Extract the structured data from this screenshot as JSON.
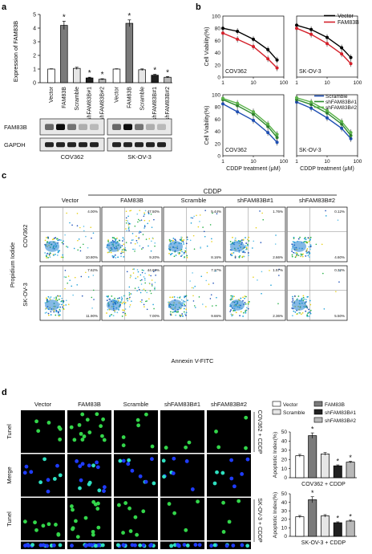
{
  "panel_labels": {
    "a": "a",
    "b": "b",
    "c": "c",
    "d": "d"
  },
  "panel_a": {
    "ylabel": "Expression of FAM83B",
    "yticks": [
      "0",
      "1",
      "2",
      "3",
      "4",
      "5"
    ],
    "cell_lines": [
      "COV362",
      "SK-OV-3"
    ],
    "blot_labels": [
      "FAM83B",
      "GAPDH"
    ]
  },
  "panel_b": {
    "ylabel": "Cell Viability(%)",
    "xlabel": "CDDP treatment (μM)",
    "yticks": [
      "0",
      "20",
      "40",
      "60",
      "80",
      "100"
    ],
    "xticks": [
      "1",
      "10",
      "100"
    ],
    "legend_top": [
      "Vector",
      "FAM83B"
    ],
    "legend_bottom": [
      "Scramble",
      "shFAM83B#1",
      "shFAM83B#2"
    ],
    "subplot_labels": [
      "COV362",
      "SK-OV-3",
      "COV362",
      "SK-OV-3"
    ]
  },
  "panel_c": {
    "header": "CDDP",
    "groups": [
      "Vector",
      "FAM83B",
      "Scramble",
      "shFAM83B#1",
      "shFAM83B#2"
    ],
    "rows": [
      "COV362",
      "SK-OV-3"
    ],
    "ylabel": "Propidium Iodide",
    "xlabel": "Annexin V-FITC",
    "ur_pct": [
      [
        "4.00%",
        "47.50%",
        "5.44%",
        "1.76%",
        "0.12%"
      ],
      [
        "7.62%",
        "44.60%",
        "7.27%",
        "1.57%",
        "0.32%"
      ]
    ],
    "lr_pct": [
      [
        "10.80%",
        "9.20%",
        "8.16%",
        "2.66%",
        "4.60%"
      ],
      [
        "11.90%",
        "7.00%",
        "9.66%",
        "2.36%",
        "5.50%"
      ]
    ]
  },
  "panel_d": {
    "groups": [
      "Vector",
      "FAM83B",
      "Scramble",
      "shFAM83B#1",
      "shFAM83B#2"
    ],
    "row_labels": [
      "Tunel",
      "Merge",
      "Tunel",
      "Merge"
    ],
    "side_labels": [
      "COV362 + CDDP",
      "SK-OV-3 + CDDP"
    ],
    "legend": [
      "Vector",
      "FAM83B",
      "Scramble",
      "shFAM83B#1",
      "shFAM83B#2"
    ],
    "ylabel": "Apoptotic Index(%)",
    "yticks": [
      "0",
      "10",
      "20",
      "30",
      "40",
      "50"
    ],
    "xlabels": [
      "COV362 + CDDP",
      "SK-OV-3 + CDDP"
    ]
  },
  "significance_mark": "*",
  "colors": {
    "vector": "#000000",
    "fam83b": "#d4202a",
    "scramble": "#1f4fb3",
    "sh1": "#2e8b2e",
    "sh2": "#5bb24a"
  },
  "chart_data": [
    {
      "type": "bar",
      "title": "",
      "ylabel": "Expression of FAM83B",
      "ylim": [
        0,
        5
      ],
      "categories": [
        "Vector",
        "FAM83B",
        "Scramble",
        "shFAM83B#1",
        "shFAM83B#2",
        "Vector",
        "FAM83B",
        "Scramble",
        "shFAM83B#1",
        "shFAM83B#2"
      ],
      "values": [
        1.0,
        4.2,
        1.05,
        0.35,
        0.25,
        1.0,
        4.35,
        0.95,
        0.55,
        0.4
      ],
      "errors": [
        0.02,
        0.3,
        0.08,
        0.05,
        0.04,
        0.02,
        0.25,
        0.06,
        0.06,
        0.05
      ],
      "significant": [
        false,
        true,
        false,
        true,
        true,
        false,
        true,
        false,
        true,
        true
      ],
      "groups": [
        "COV362",
        "SK-OV-3"
      ]
    },
    {
      "type": "line",
      "xscale": "log",
      "xlim": [
        1,
        100
      ],
      "ylim": [
        0,
        100
      ],
      "x": [
        1,
        3,
        10,
        30,
        60
      ],
      "series": [
        {
          "name": "Vector",
          "values": [
            80,
            75,
            62,
            45,
            28
          ]
        },
        {
          "name": "FAM83B",
          "values": [
            72,
            62,
            50,
            30,
            15
          ]
        }
      ],
      "label": "COV362"
    },
    {
      "type": "line",
      "xscale": "log",
      "xlim": [
        1,
        100
      ],
      "ylim": [
        0,
        100
      ],
      "x": [
        1,
        3,
        10,
        30,
        60
      ],
      "series": [
        {
          "name": "Vector",
          "values": [
            85,
            78,
            65,
            48,
            32
          ]
        },
        {
          "name": "FAM83B",
          "values": [
            80,
            70,
            55,
            38,
            22
          ]
        }
      ],
      "label": "SK-OV-3"
    },
    {
      "type": "line",
      "xscale": "log",
      "xlim": [
        1,
        100
      ],
      "ylim": [
        0,
        100
      ],
      "x": [
        1,
        3,
        10,
        30,
        60
      ],
      "series": [
        {
          "name": "Scramble",
          "values": [
            85,
            72,
            58,
            38,
            22
          ]
        },
        {
          "name": "shFAM83B#1",
          "values": [
            92,
            82,
            68,
            48,
            30
          ]
        },
        {
          "name": "shFAM83B#2",
          "values": [
            94,
            86,
            72,
            52,
            35
          ]
        }
      ],
      "label": "COV362"
    },
    {
      "type": "line",
      "xscale": "log",
      "xlim": [
        1,
        100
      ],
      "ylim": [
        0,
        100
      ],
      "x": [
        1,
        3,
        10,
        30,
        60
      ],
      "series": [
        {
          "name": "Scramble",
          "values": [
            88,
            78,
            62,
            45,
            28
          ]
        },
        {
          "name": "shFAM83B#1",
          "values": [
            92,
            84,
            70,
            52,
            33
          ]
        },
        {
          "name": "shFAM83B#2",
          "values": [
            95,
            88,
            74,
            56,
            38
          ]
        }
      ],
      "label": "SK-OV-3"
    },
    {
      "type": "bar",
      "ylim": [
        0,
        50
      ],
      "ylabel": "Apoptotic Index(%)",
      "categories": [
        "Vector",
        "FAM83B",
        "Scramble",
        "shFAM83B#1",
        "shFAM83B#2"
      ],
      "values": [
        24,
        46,
        26,
        13,
        17
      ],
      "errors": [
        1.5,
        3,
        1.5,
        1,
        1
      ],
      "significant": [
        false,
        true,
        false,
        true,
        true
      ],
      "label": "COV362 + CDDP"
    },
    {
      "type": "bar",
      "ylim": [
        0,
        50
      ],
      "ylabel": "Apoptotic Index(%)",
      "categories": [
        "Vector",
        "FAM83B",
        "Scramble",
        "shFAM83B#1",
        "shFAM83B#2"
      ],
      "values": [
        23,
        43,
        24,
        16,
        18
      ],
      "errors": [
        1.5,
        3.5,
        1.5,
        1,
        1
      ],
      "significant": [
        false,
        true,
        false,
        true,
        true
      ],
      "label": "SK-OV-3 + CDDP"
    }
  ]
}
